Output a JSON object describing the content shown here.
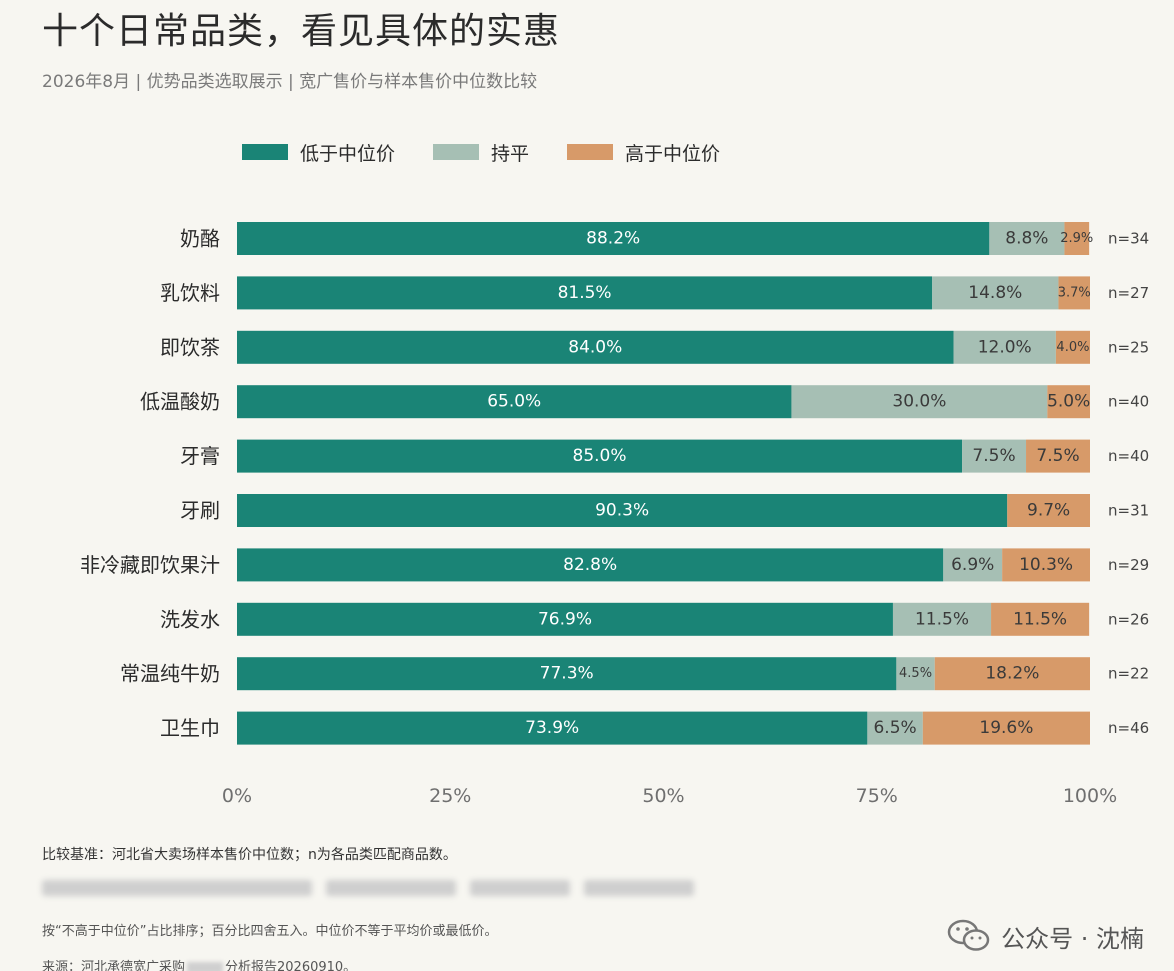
{
  "header": {
    "title": "十个日常品类，看见具体的实惠",
    "subtitle": "2026年8月 | 优势品类选取展示 | 宽广售价与样本售价中位数比较"
  },
  "colors": {
    "below": "#1a8476",
    "equal": "#a6bfb4",
    "above": "#d79a69",
    "axis_text": "#6f6f6f",
    "background": "#f7f6f1"
  },
  "legend": [
    {
      "label": "低于中位价",
      "color": "#1a8476"
    },
    {
      "label": "持平",
      "color": "#a6bfb4"
    },
    {
      "label": "高于中位价",
      "color": "#d79a69"
    }
  ],
  "chart_data": {
    "type": "bar",
    "orientation": "horizontal",
    "stacked": true,
    "title": "十个日常品类，看见具体的实惠",
    "xlim": [
      0,
      100
    ],
    "xticks": [
      "0%",
      "25%",
      "50%",
      "75%",
      "100%"
    ],
    "categories": [
      "奶酪",
      "乳饮料",
      "即饮茶",
      "低温酸奶",
      "牙膏",
      "牙刷",
      "非冷藏即饮果汁",
      "洗发水",
      "常温纯牛奶",
      "卫生巾"
    ],
    "series": [
      {
        "name": "低于中位价",
        "values": [
          88.2,
          81.5,
          84.0,
          65.0,
          85.0,
          90.3,
          82.8,
          76.9,
          77.3,
          73.9
        ]
      },
      {
        "name": "持平",
        "values": [
          8.8,
          14.8,
          12.0,
          30.0,
          7.5,
          0,
          6.9,
          11.5,
          4.5,
          6.5
        ]
      },
      {
        "name": "高于中位价",
        "values": [
          2.9,
          3.7,
          4.0,
          5.0,
          7.5,
          9.7,
          10.3,
          11.5,
          18.2,
          19.6
        ]
      }
    ],
    "n_labels": [
      "n=34",
      "n=27",
      "n=25",
      "n=40",
      "n=40",
      "n=31",
      "n=29",
      "n=26",
      "n=22",
      "n=46"
    ],
    "grid": false,
    "legend_position": "top"
  },
  "notes": {
    "basis": "比较基准：河北省大卖场样本售价中位数；n为各品类匹配商品数。",
    "sorting": "按“不高于中位价”占比排序；百分比四舍五入。中位价不等于平均价或最低价。",
    "source_prefix": "来源：河北承德宽广采购",
    "source_suffix": "分析报告20260910。"
  },
  "watermark": {
    "text": "公众号 · 沈楠",
    "icon": "wechat-icon"
  }
}
